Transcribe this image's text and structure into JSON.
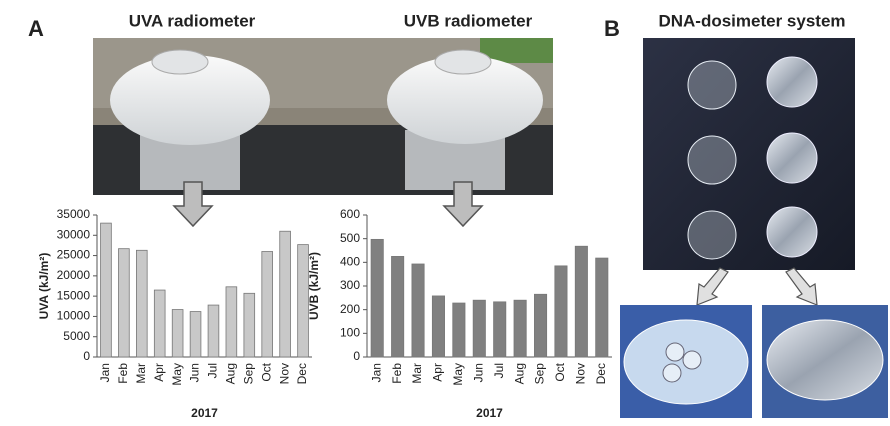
{
  "figure": {
    "panel_a": "A",
    "panel_b": "B",
    "uva_title": "UVA radiometer",
    "uvb_title": "UVB radiometer",
    "dna_title": "DNA-dosimeter system"
  },
  "chart_data": [
    {
      "type": "bar",
      "ylabel": "UVA (kJ/m²)",
      "xlabel": "2017",
      "categories": [
        "Jan",
        "Feb",
        "Mar",
        "Apr",
        "May",
        "Jun",
        "Jul",
        "Aug",
        "Sep",
        "Oct",
        "Nov",
        "Dec"
      ],
      "values": [
        33000,
        26700,
        26300,
        16500,
        11700,
        11200,
        12800,
        17300,
        15700,
        26000,
        31000,
        27700
      ],
      "color": "#c8c8c8",
      "ylim": [
        0,
        35000
      ],
      "yticks": [
        0,
        5000,
        10000,
        15000,
        20000,
        25000,
        30000,
        35000
      ]
    },
    {
      "type": "bar",
      "ylabel": "UVB (kJ/m²)",
      "xlabel": "2017",
      "categories": [
        "Jan",
        "Feb",
        "Mar",
        "Apr",
        "May",
        "Jun",
        "Jul",
        "Aug",
        "Sep",
        "Oct",
        "Nov",
        "Dec"
      ],
      "values": [
        497,
        425,
        393,
        258,
        228,
        240,
        233,
        240,
        265,
        385,
        468,
        418
      ],
      "color": "#808080",
      "ylim": [
        0,
        600
      ],
      "yticks": [
        0,
        100,
        200,
        300,
        400,
        500,
        600
      ]
    }
  ]
}
